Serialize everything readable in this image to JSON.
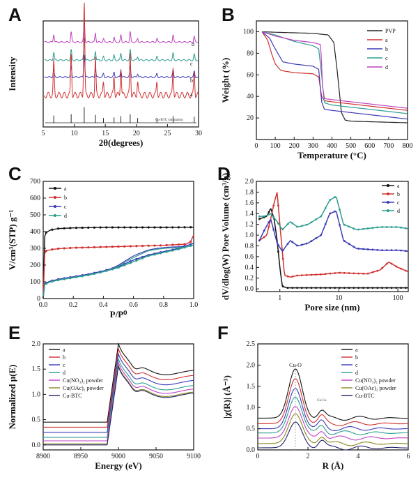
{
  "panels": {
    "A": {
      "label": "A"
    },
    "B": {
      "label": "B"
    },
    "C": {
      "label": "C"
    },
    "D": {
      "label": "D"
    },
    "E": {
      "label": "E"
    },
    "F": {
      "label": "F"
    }
  },
  "chart_data": [
    {
      "id": "A",
      "type": "line",
      "xlabel": "2θ(degrees)",
      "ylabel": "Intensity",
      "xlim": [
        5,
        30
      ],
      "xticks": [
        5,
        10,
        15,
        20,
        25,
        30
      ],
      "yticks": [],
      "series": [
        {
          "name": "d",
          "color": "#c040c0",
          "offset": 0.8,
          "scale": 0.22
        },
        {
          "name": "c",
          "color": "#2a9d8f",
          "offset": 0.63,
          "scale": 0.22
        },
        {
          "name": "b",
          "color": "#3a3ab8",
          "offset": 0.47,
          "scale": 0.22
        },
        {
          "name": "a",
          "color": "#d03030",
          "offset": 0.3,
          "scale": 0.9
        },
        {
          "name": "Cu-BTC simulation",
          "color": "#222222",
          "offset": 0.0,
          "scale": 0.14
        }
      ],
      "peaks": [
        [
          6.7,
          0.35
        ],
        [
          9.5,
          0.45
        ],
        [
          11.6,
          1.0
        ],
        [
          13.4,
          0.4
        ],
        [
          14.7,
          0.15
        ],
        [
          16.4,
          0.2
        ],
        [
          17.5,
          0.3
        ],
        [
          19.0,
          0.45
        ],
        [
          20.2,
          0.15
        ],
        [
          23.3,
          0.15
        ],
        [
          25.9,
          0.3
        ],
        [
          29.3,
          0.25
        ]
      ],
      "annotations": {
        "a": "a",
        "b": "b",
        "c": "c",
        "d": "d",
        "sim": "Cu-BTC simulation"
      }
    },
    {
      "id": "B",
      "type": "line",
      "xlabel": "Temperature (°C)",
      "ylabel": "Weight (%)",
      "xlim": [
        0,
        800
      ],
      "ylim": [
        0,
        110
      ],
      "xticks": [
        0,
        100,
        200,
        300,
        400,
        500,
        600,
        700,
        800
      ],
      "yticks": [
        20,
        40,
        60,
        80,
        100
      ],
      "series": [
        {
          "name": "PVP",
          "color": "#222222",
          "x": [
            30,
            100,
            200,
            300,
            380,
            410,
            430,
            450,
            470,
            500,
            600,
            700,
            800
          ],
          "y": [
            100,
            99.5,
            99,
            98.5,
            97,
            90,
            60,
            25,
            18,
            17,
            16.5,
            16,
            15.5
          ]
        },
        {
          "name": "a",
          "color": "#d03030",
          "x": [
            30,
            60,
            80,
            100,
            130,
            200,
            300,
            330,
            345,
            360,
            400,
            500,
            600,
            700,
            800
          ],
          "y": [
            100,
            92,
            80,
            70,
            64,
            62,
            61,
            58,
            40,
            36,
            35,
            33,
            31,
            29,
            27
          ]
        },
        {
          "name": "b",
          "color": "#3a3ab8",
          "x": [
            30,
            70,
            100,
            140,
            200,
            300,
            330,
            345,
            360,
            400,
            500,
            600,
            700,
            800
          ],
          "y": [
            100,
            94,
            84,
            72,
            70,
            68,
            65,
            35,
            28,
            27,
            25,
            23,
            21,
            19
          ]
        },
        {
          "name": "c",
          "color": "#2a9d8f",
          "x": [
            30,
            100,
            150,
            200,
            250,
            300,
            330,
            345,
            360,
            400,
            500,
            600,
            700,
            800
          ],
          "y": [
            100,
            97,
            94,
            91,
            89,
            87,
            84,
            60,
            34,
            32,
            30,
            28,
            26,
            24
          ]
        },
        {
          "name": "d",
          "color": "#c040c0",
          "x": [
            30,
            100,
            200,
            300,
            340,
            350,
            360,
            400,
            500,
            600,
            700,
            800
          ],
          "y": [
            100,
            96,
            92,
            90,
            88,
            50,
            38,
            37,
            35,
            33,
            31,
            29
          ]
        }
      ]
    },
    {
      "id": "C",
      "type": "line",
      "xlabel": "P/P⁰",
      "ylabel": "V/cm³(STP) g⁻¹",
      "xlim": [
        0,
        1.0
      ],
      "ylim": [
        0,
        700
      ],
      "xticks": [
        0.0,
        0.2,
        0.4,
        0.6,
        0.8,
        1.0
      ],
      "yticks": [
        0,
        100,
        200,
        300,
        400,
        500,
        600,
        700
      ],
      "series": [
        {
          "name": "a",
          "color": "#111111",
          "x": [
            0,
            0.005,
            0.02,
            0.05,
            0.1,
            0.2,
            0.4,
            0.6,
            0.8,
            1.0
          ],
          "y": [
            0,
            360,
            395,
            410,
            418,
            422,
            425,
            425,
            425,
            426
          ]
        },
        {
          "name": "b",
          "color": "#d03030",
          "x": [
            0,
            0.005,
            0.02,
            0.05,
            0.1,
            0.2,
            0.4,
            0.6,
            0.8,
            0.95,
            0.98,
            1.0
          ],
          "y": [
            0,
            260,
            285,
            292,
            298,
            303,
            308,
            313,
            318,
            325,
            340,
            380
          ]
        },
        {
          "name": "c",
          "color": "#3a3ab8",
          "x": [
            0,
            0.01,
            0.05,
            0.1,
            0.2,
            0.3,
            0.4,
            0.5,
            0.6,
            0.7,
            0.8,
            0.9,
            1.0
          ],
          "y": [
            0,
            90,
            105,
            115,
            130,
            145,
            165,
            190,
            230,
            260,
            280,
            300,
            330
          ]
        },
        {
          "name": "d",
          "color": "#2a9d8f",
          "x": [
            0,
            0.01,
            0.05,
            0.1,
            0.2,
            0.3,
            0.4,
            0.5,
            0.6,
            0.7,
            0.8,
            0.9,
            1.0
          ],
          "y": [
            0,
            85,
            100,
            110,
            125,
            140,
            160,
            185,
            220,
            255,
            275,
            295,
            320
          ]
        }
      ]
    },
    {
      "id": "D",
      "type": "line",
      "xlabel": "Pore size (nm)",
      "ylabel": "dV/dlog(W) Pore Volume (cm³/g)",
      "xscale": "log",
      "xlim": [
        0.4,
        150
      ],
      "ylim": [
        -0.05,
        2.0
      ],
      "xticks": [
        1,
        10,
        100
      ],
      "yticks": [
        0.0,
        0.2,
        0.4,
        0.6,
        0.8,
        1.0,
        1.2,
        1.4,
        1.6,
        1.8,
        2.0
      ],
      "series": [
        {
          "name": "a",
          "color": "#111111",
          "x": [
            0.45,
            0.6,
            0.7,
            0.8,
            0.9,
            1.0,
            1.1,
            1.3,
            2,
            5,
            10,
            50,
            150
          ],
          "y": [
            1.3,
            1.35,
            1.5,
            1.3,
            0.9,
            0.4,
            0.05,
            0.02,
            0.02,
            0.02,
            0.02,
            0.02,
            0.02
          ]
        },
        {
          "name": "b",
          "color": "#d03030",
          "x": [
            0.45,
            0.6,
            0.7,
            0.8,
            0.9,
            1.0,
            1.2,
            1.5,
            2,
            5,
            10,
            30,
            50,
            70,
            100,
            150
          ],
          "y": [
            0.9,
            1.0,
            1.3,
            1.6,
            1.8,
            1.2,
            0.25,
            0.22,
            0.25,
            0.27,
            0.3,
            0.28,
            0.35,
            0.5,
            0.4,
            0.32
          ]
        },
        {
          "name": "c",
          "color": "#3a3ab8",
          "x": [
            0.45,
            0.55,
            0.7,
            0.9,
            1.1,
            1.5,
            2,
            3,
            5,
            7,
            9,
            12,
            20,
            50,
            100,
            150
          ],
          "y": [
            0.9,
            1.1,
            1.3,
            0.85,
            0.7,
            0.9,
            0.8,
            0.85,
            1.0,
            1.4,
            1.45,
            0.9,
            0.75,
            0.72,
            0.72,
            0.7
          ]
        },
        {
          "name": "d",
          "color": "#2a9d8f",
          "x": [
            0.45,
            0.55,
            0.7,
            0.9,
            1.1,
            1.5,
            2,
            3,
            5,
            7,
            9,
            12,
            20,
            50,
            100,
            150
          ],
          "y": [
            1.35,
            1.35,
            1.4,
            1.25,
            1.1,
            1.25,
            1.15,
            1.2,
            1.35,
            1.65,
            1.72,
            1.2,
            1.1,
            1.15,
            1.15,
            1.12
          ]
        }
      ]
    },
    {
      "id": "E",
      "type": "line",
      "xlabel": "Energy (eV)",
      "ylabel": "Normalized μ(E)",
      "xlim": [
        8900,
        9100
      ],
      "ylim": [
        -0.1,
        2.0
      ],
      "xticks": [
        8900,
        8950,
        9000,
        9050,
        9100
      ],
      "yticks": [
        0.0,
        0.5,
        1.0,
        1.5,
        2.0
      ],
      "legend": [
        "a",
        "b",
        "c",
        "d",
        "Cu(NO₃)₂ powder",
        "Cu(OAc)₂ powder",
        "Cu-BTC"
      ],
      "series": [
        {
          "name": "a",
          "color": "#111111",
          "offset": 0.45
        },
        {
          "name": "b",
          "color": "#d03030",
          "offset": 0.35
        },
        {
          "name": "c",
          "color": "#3a3ab8",
          "offset": 0.25
        },
        {
          "name": "d",
          "color": "#2a9d8f",
          "offset": 0.15
        },
        {
          "name": "Cu(NO₃)₂ powder",
          "color": "#c040c0",
          "offset": 0.08
        },
        {
          "name": "Cu(OAc)₂ powder",
          "color": "#888820",
          "offset": 0.02
        },
        {
          "name": "Cu-BTC",
          "color": "#222266",
          "offset": 0.0
        }
      ]
    },
    {
      "id": "F",
      "type": "line",
      "xlabel": "R (Å)",
      "ylabel": "|χ(R)| (Å⁻³)",
      "xlim": [
        0,
        6
      ],
      "ylim": [
        0,
        2.5
      ],
      "xticks": [
        0,
        2,
        4,
        6
      ],
      "yticks": [
        0.0,
        0.5,
        1.0,
        1.5,
        2.0,
        2.5
      ],
      "legend": [
        "a",
        "b",
        "c",
        "d",
        "Cu(NO₃)₂ powder",
        "Cu(OAc)₂ powder",
        "Cu-BTC"
      ],
      "annotations": {
        "cu_o": "Cu-O",
        "cu_cu": "Cu-Cu"
      },
      "series": [
        {
          "name": "a",
          "color": "#111111",
          "offset": 0.75,
          "peak": 1.15
        },
        {
          "name": "b",
          "color": "#d03030",
          "offset": 0.62,
          "peak": 1.05
        },
        {
          "name": "c",
          "color": "#3a3ab8",
          "offset": 0.5,
          "peak": 0.95
        },
        {
          "name": "d",
          "color": "#2a9d8f",
          "offset": 0.4,
          "peak": 0.85
        },
        {
          "name": "Cu(NO₃)₂ powder",
          "color": "#c040c0",
          "offset": 0.28,
          "peak": 0.75
        },
        {
          "name": "Cu(OAc)₂ powder",
          "color": "#888820",
          "offset": 0.15,
          "peak": 0.7
        },
        {
          "name": "Cu-BTC",
          "color": "#222266",
          "offset": 0.05,
          "peak": 0.6
        }
      ]
    }
  ]
}
